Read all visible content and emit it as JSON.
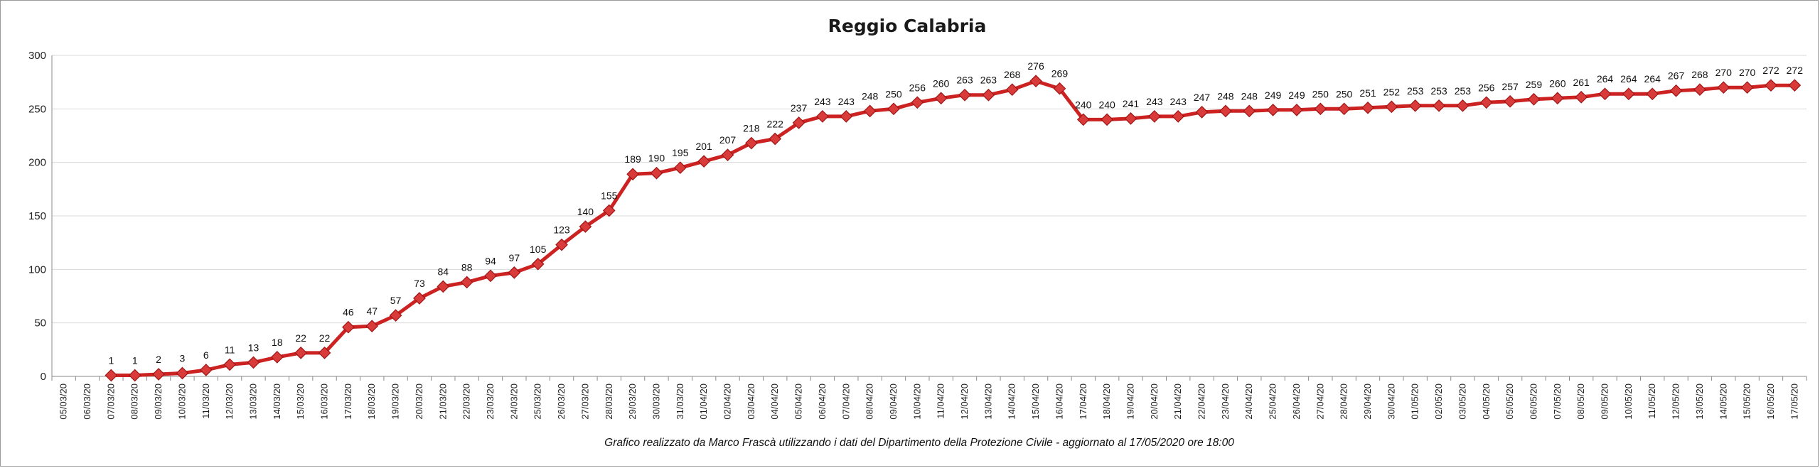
{
  "chart_data": {
    "type": "line",
    "title": "Reggio Calabria",
    "caption": "Grafico  realizzato da Marco Frascà  utilizzando i dati del Dipartimento  della Protezione Civile  - aggiornato al 17/05/2020 ore 18:00",
    "ylim": [
      0,
      300
    ],
    "yticks": [
      0,
      50,
      100,
      150,
      200,
      250,
      300
    ],
    "grid": "horizontal",
    "colors": {
      "line": "#cc2222",
      "marker": "#d93a3a",
      "marker_edge": "#a01515",
      "grid": "#d9d9d9"
    },
    "categories": [
      "05/03/20",
      "06/03/20",
      "07/03/20",
      "08/03/20",
      "09/03/20",
      "10/03/20",
      "11/03/20",
      "12/03/20",
      "13/03/20",
      "14/03/20",
      "15/03/20",
      "16/03/20",
      "17/03/20",
      "18/03/20",
      "19/03/20",
      "20/03/20",
      "21/03/20",
      "22/03/20",
      "23/03/20",
      "24/03/20",
      "25/03/20",
      "26/03/20",
      "27/03/20",
      "28/03/20",
      "29/03/20",
      "30/03/20",
      "31/03/20",
      "01/04/20",
      "02/04/20",
      "03/04/20",
      "04/04/20",
      "05/04/20",
      "06/04/20",
      "07/04/20",
      "08/04/20",
      "09/04/20",
      "10/04/20",
      "11/04/20",
      "12/04/20",
      "13/04/20",
      "14/04/20",
      "15/04/20",
      "16/04/20",
      "17/04/20",
      "18/04/20",
      "19/04/20",
      "20/04/20",
      "21/04/20",
      "22/04/20",
      "23/04/20",
      "24/04/20",
      "25/04/20",
      "26/04/20",
      "27/04/20",
      "28/04/20",
      "29/04/20",
      "30/04/20",
      "01/05/20",
      "02/05/20",
      "03/05/20",
      "04/05/20",
      "05/05/20",
      "06/05/20",
      "07/05/20",
      "08/05/20",
      "09/05/20",
      "10/05/20",
      "11/05/20",
      "12/05/20",
      "13/05/20",
      "14/05/20",
      "15/05/20",
      "16/05/20",
      "17/05/20"
    ],
    "values": [
      null,
      null,
      1,
      1,
      2,
      3,
      6,
      11,
      13,
      18,
      22,
      22,
      46,
      47,
      57,
      73,
      84,
      88,
      94,
      97,
      105,
      123,
      140,
      155,
      189,
      190,
      195,
      201,
      207,
      218,
      222,
      237,
      243,
      243,
      248,
      250,
      256,
      260,
      263,
      263,
      268,
      276,
      269,
      240,
      240,
      241,
      243,
      243,
      247,
      248,
      248,
      249,
      249,
      250,
      250,
      251,
      252,
      253,
      253,
      253,
      256,
      257,
      259,
      260,
      261,
      264,
      264,
      264,
      267,
      268,
      270,
      270,
      272,
      272
    ]
  }
}
